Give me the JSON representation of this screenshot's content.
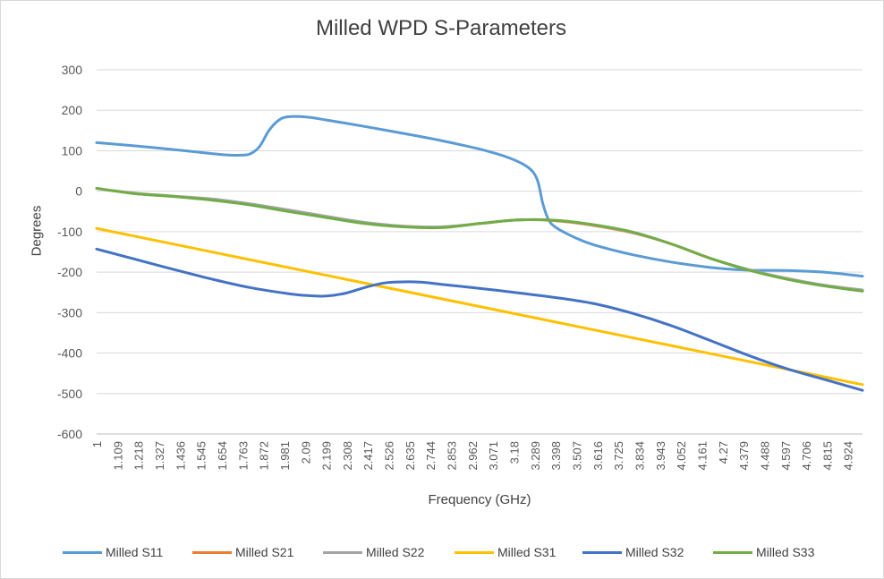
{
  "chart_data": {
    "type": "line",
    "title": "Milled WPD S-Parameters",
    "xlabel": "Frequency (GHz)",
    "ylabel": "Degrees",
    "ylim": [
      -600,
      300
    ],
    "yticks": [
      300,
      200,
      100,
      0,
      -100,
      -200,
      -300,
      -400,
      -500,
      -600
    ],
    "xlim": [
      1,
      5
    ],
    "categories": [
      "1",
      "1.109",
      "1.218",
      "1.327",
      "1.436",
      "1.545",
      "1.654",
      "1.763",
      "1.872",
      "1.981",
      "2.09",
      "2.199",
      "2.308",
      "2.417",
      "2.526",
      "2.635",
      "2.744",
      "2.853",
      "2.962",
      "3.071",
      "3.18",
      "3.289",
      "3.398",
      "3.507",
      "3.616",
      "3.725",
      "3.834",
      "3.943",
      "4.052",
      "4.161",
      "4.27",
      "4.379",
      "4.488",
      "4.597",
      "4.706",
      "4.815",
      "4.924"
    ],
    "grid": true,
    "legend_position": "bottom",
    "series": [
      {
        "name": "Milled S11",
        "color": "#5b9bd5",
        "x": [
          1,
          1.2,
          1.4,
          1.6,
          1.7,
          1.75,
          1.8,
          1.85,
          1.9,
          1.95,
          2.0,
          2.1,
          2.2,
          2.4,
          2.6,
          2.8,
          3.0,
          3.15,
          3.25,
          3.3,
          3.33,
          3.36,
          3.4,
          3.5,
          3.6,
          3.8,
          4.0,
          4.2,
          4.4,
          4.6,
          4.8,
          5.0
        ],
        "values": [
          120,
          112,
          103,
          93,
          89,
          89,
          92,
          110,
          150,
          175,
          184,
          183,
          176,
          160,
          143,
          125,
          104,
          83,
          60,
          30,
          -30,
          -70,
          -90,
          -115,
          -133,
          -157,
          -175,
          -188,
          -195,
          -196,
          -200,
          -210
        ]
      },
      {
        "name": "Milled S21",
        "color": "#ed7d31",
        "x": [
          1,
          1.2,
          1.4,
          1.6,
          1.8,
          2.0,
          2.2,
          2.4,
          2.6,
          2.8,
          3.0,
          3.2,
          3.4,
          3.6,
          3.8,
          4.0,
          4.2,
          4.4,
          4.6,
          4.8,
          5.0
        ],
        "values": [
          7,
          -6,
          -13,
          -20,
          -32,
          -48,
          -63,
          -78,
          -87,
          -89,
          -80,
          -71,
          -73,
          -85,
          -103,
          -130,
          -165,
          -194,
          -215,
          -233,
          -245
        ]
      },
      {
        "name": "Milled S22",
        "color": "#a5a5a5",
        "x": [
          1,
          1.2,
          1.4,
          1.6,
          1.8,
          2.0,
          2.2,
          2.4,
          2.6,
          2.8,
          3.0,
          3.2,
          3.4,
          3.6,
          3.8,
          4.0,
          4.2,
          4.4,
          4.6,
          4.8,
          5.0
        ],
        "values": [
          7,
          -5,
          -12,
          -19,
          -31,
          -46,
          -62,
          -77,
          -86,
          -88,
          -80,
          -71,
          -72,
          -84,
          -102,
          -130,
          -165,
          -193,
          -215,
          -232,
          -244
        ]
      },
      {
        "name": "Milled S31",
        "color": "#ffc000",
        "x": [
          1,
          5
        ],
        "values": [
          -92,
          -478
        ]
      },
      {
        "name": "Milled S32",
        "color": "#4472c4",
        "x": [
          1,
          1.2,
          1.4,
          1.6,
          1.8,
          2.0,
          2.1,
          2.2,
          2.3,
          2.4,
          2.5,
          2.6,
          2.7,
          2.8,
          3.0,
          3.2,
          3.4,
          3.6,
          3.8,
          4.0,
          4.2,
          4.4,
          4.6,
          4.8,
          5.0
        ],
        "values": [
          -143,
          -168,
          -193,
          -217,
          -238,
          -253,
          -258,
          -259,
          -252,
          -238,
          -227,
          -224,
          -225,
          -230,
          -240,
          -251,
          -263,
          -278,
          -302,
          -332,
          -368,
          -405,
          -438,
          -465,
          -492
        ]
      },
      {
        "name": "Milled S33",
        "color": "#70ad47",
        "x": [
          1,
          1.2,
          1.4,
          1.6,
          1.8,
          2.0,
          2.2,
          2.4,
          2.6,
          2.8,
          3.0,
          3.2,
          3.4,
          3.6,
          3.8,
          4.0,
          4.2,
          4.4,
          4.6,
          4.8,
          5.0
        ],
        "values": [
          7,
          -6,
          -13,
          -22,
          -34,
          -50,
          -65,
          -80,
          -88,
          -90,
          -80,
          -71,
          -72,
          -83,
          -101,
          -130,
          -165,
          -194,
          -217,
          -234,
          -247
        ]
      }
    ]
  }
}
